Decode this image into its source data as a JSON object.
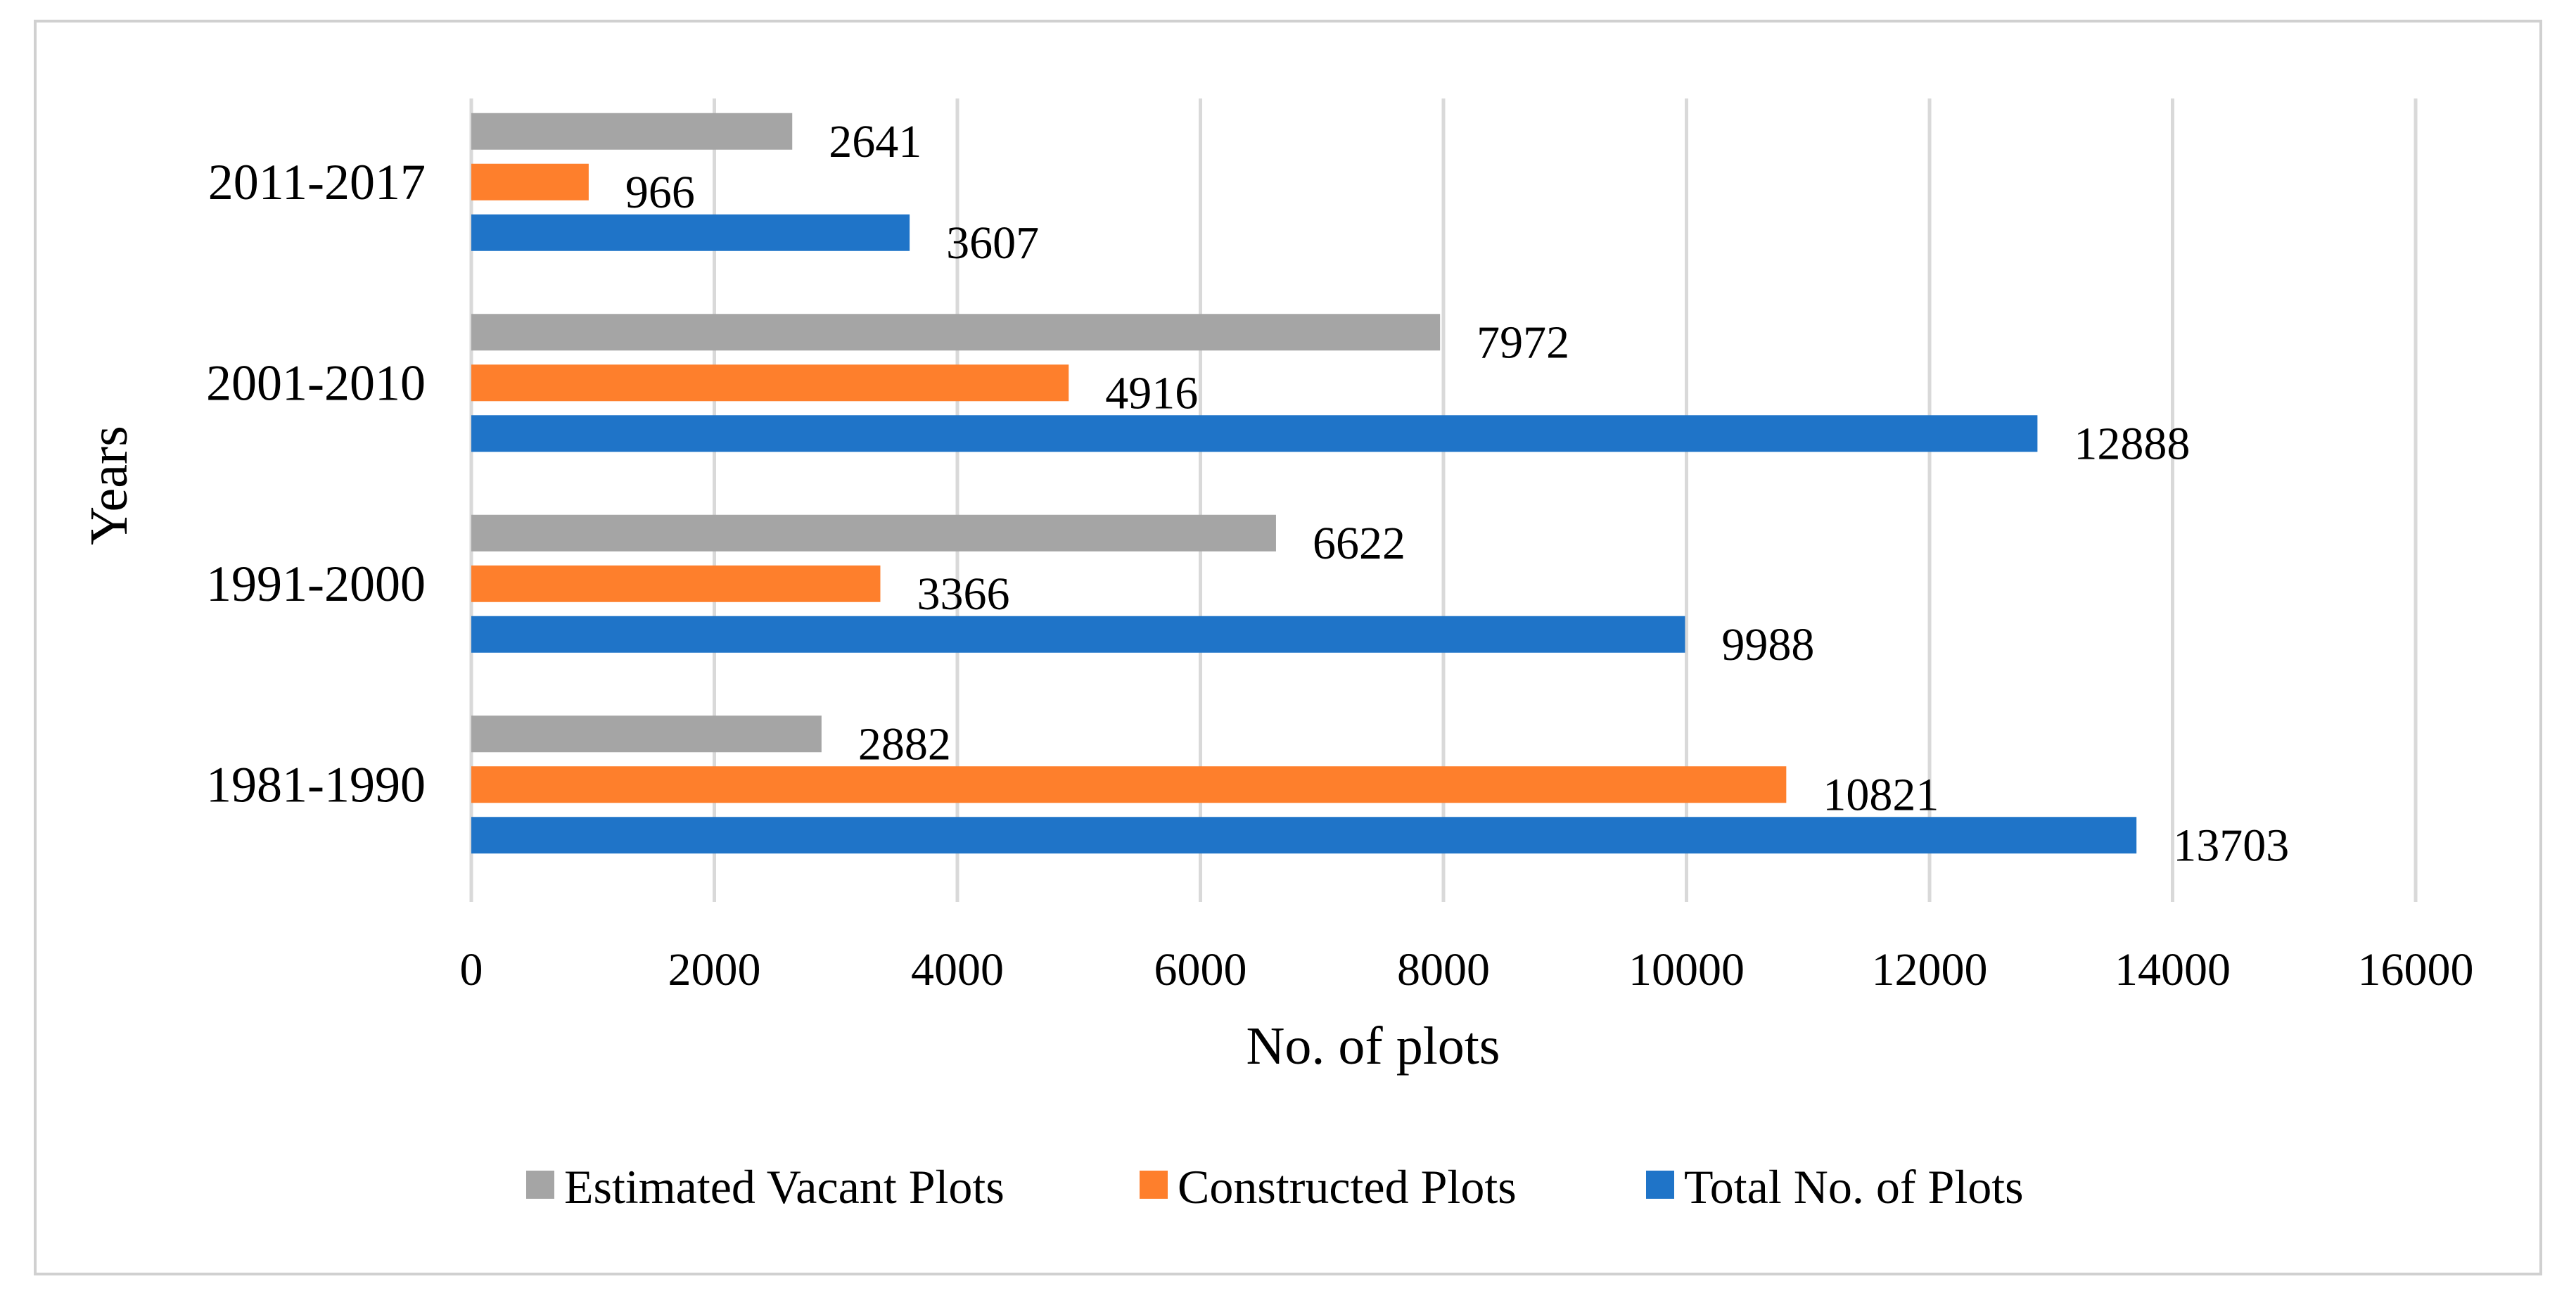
{
  "chart_data": {
    "type": "bar",
    "orientation": "horizontal",
    "title": "",
    "xlabel": "No. of plots",
    "ylabel": "Years",
    "xlim": [
      0,
      16000
    ],
    "x_ticks": [
      0,
      2000,
      4000,
      6000,
      8000,
      10000,
      12000,
      14000,
      16000
    ],
    "x_tick_labels": [
      "0",
      "2000",
      "4000",
      "6000",
      "8000",
      "10000",
      "12000",
      "14000",
      "16000"
    ],
    "grid": true,
    "legend_position": "bottom",
    "categories": [
      "1981-1990",
      "1991-2000",
      "2001-2010",
      "2011-2017"
    ],
    "series": [
      {
        "name": "Total No. of Plots",
        "color": "#1f74c8",
        "values": [
          13703,
          9988,
          12888,
          3607
        ],
        "labels": [
          "13703",
          "9988",
          "12888",
          "3607"
        ]
      },
      {
        "name": "Constructed  Plots",
        "color": "#fe7f2c",
        "values": [
          10821,
          3366,
          4916,
          966
        ],
        "labels": [
          "10821",
          "3366",
          "4916",
          "966"
        ]
      },
      {
        "name": "Estimated Vacant Plots",
        "color": "#a5a5a5",
        "values": [
          2882,
          6622,
          7972,
          2641
        ],
        "labels": [
          "2882",
          "6622",
          "7972",
          "2641"
        ]
      }
    ],
    "legend_order": [
      "Estimated Vacant Plots",
      "Constructed  Plots",
      "Total No. of Plots"
    ]
  }
}
